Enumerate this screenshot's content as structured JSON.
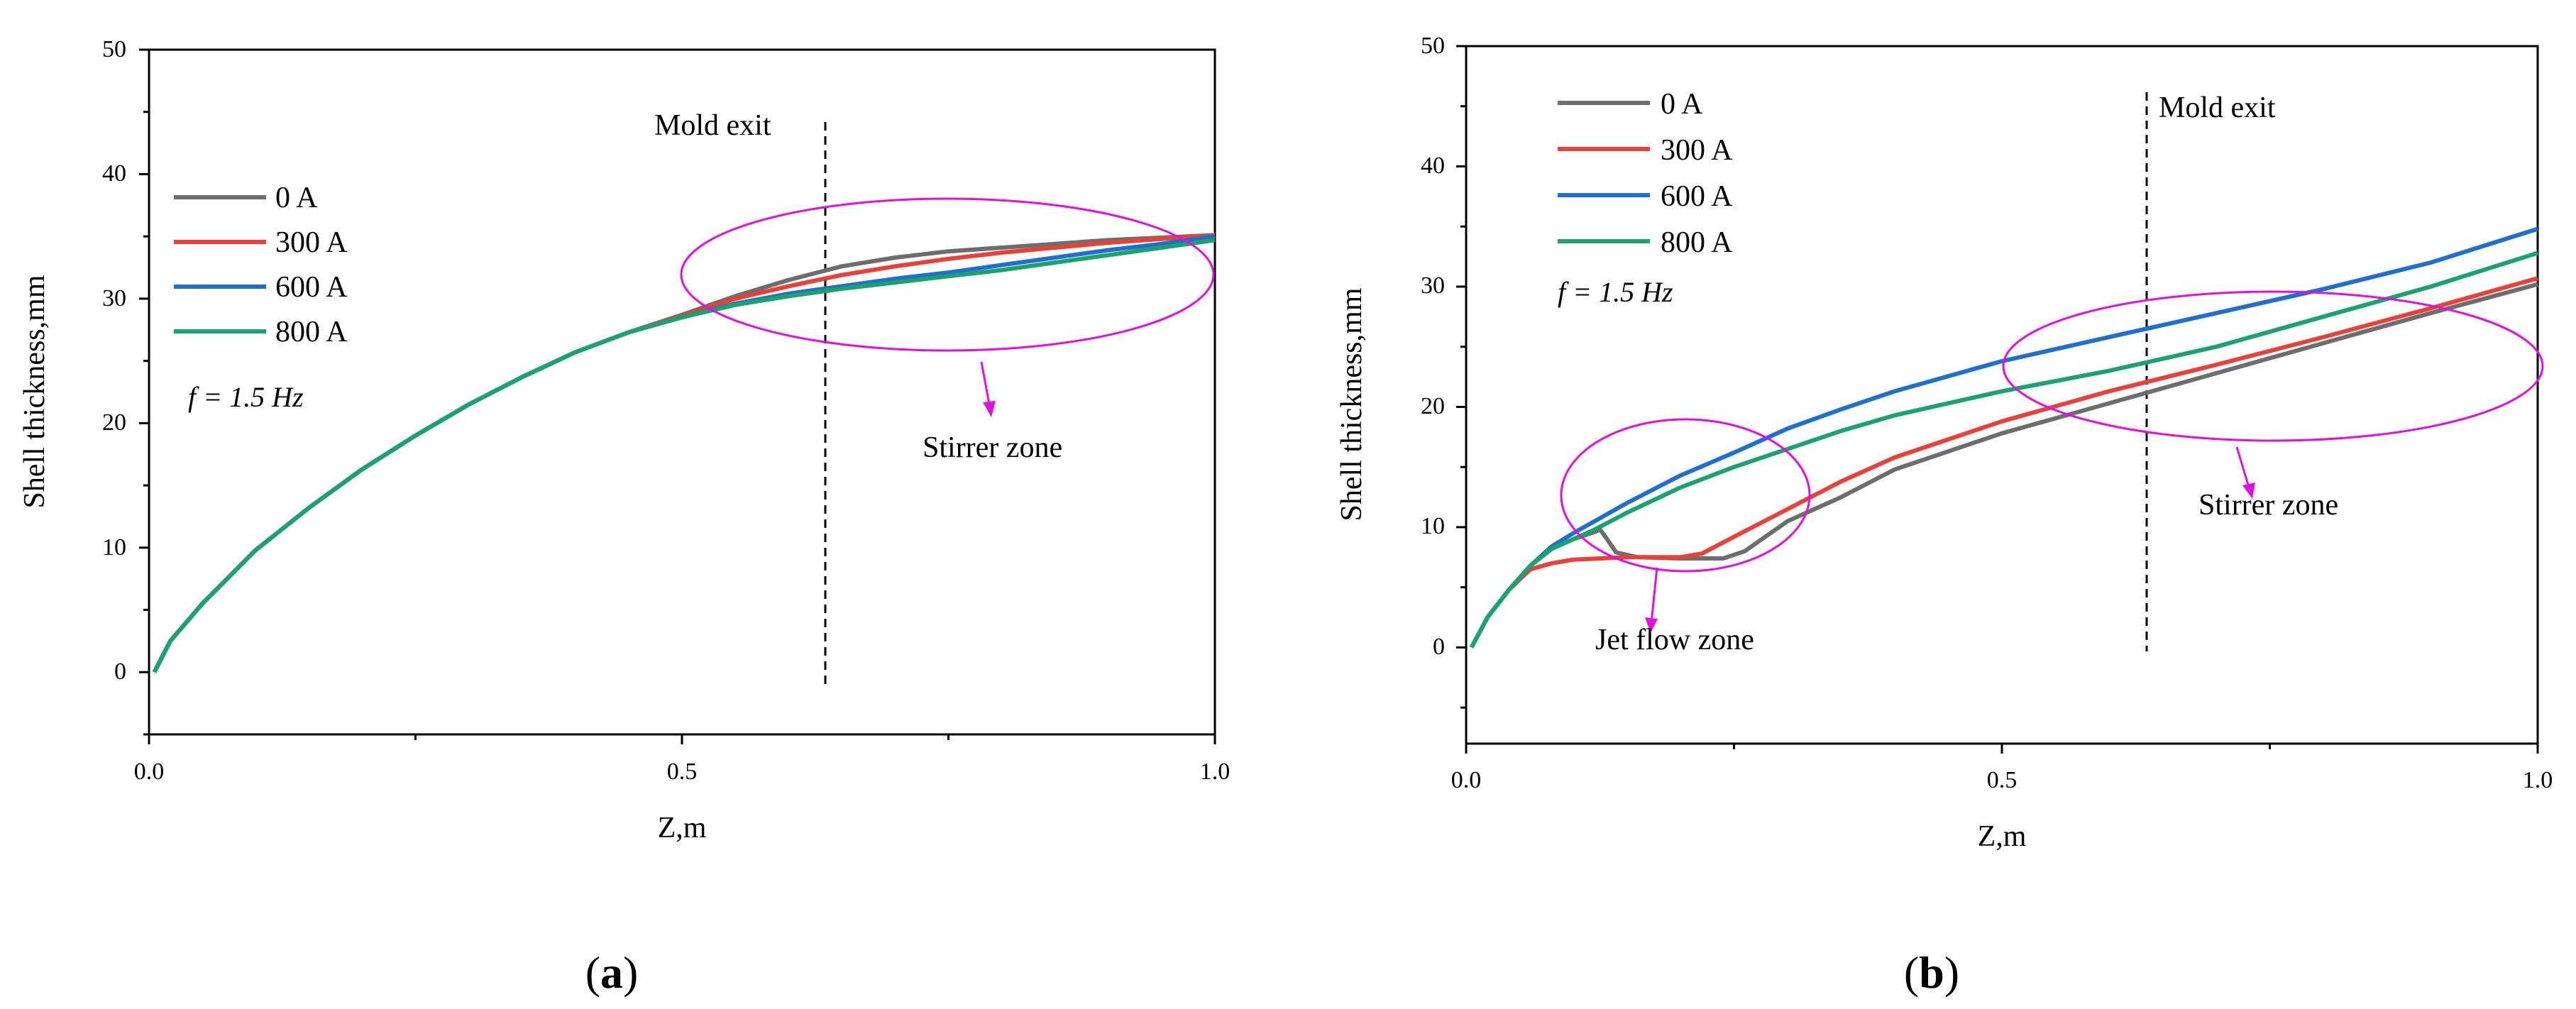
{
  "chart_data": [
    {
      "type": "line",
      "panel_label": "(a)",
      "xlabel": "Z,m",
      "ylabel": "Shell thickness,mm",
      "xlim": [
        0.0,
        1.0
      ],
      "ylim": [
        -5,
        50
      ],
      "xticks": [
        0.0,
        0.5,
        1.0
      ],
      "xtick_labels": [
        "0.0",
        "0.5",
        "1.0"
      ],
      "yticks": [
        0,
        10,
        20,
        30,
        40,
        50
      ],
      "ytick_labels": [
        "0",
        "10",
        "20",
        "30",
        "40",
        "50"
      ],
      "legend_location": "upper-left",
      "frequency_label": "f = 1.5 Hz",
      "series": [
        {
          "name": "0 A",
          "color": "#6d6d6d",
          "x": [
            0.005,
            0.02,
            0.05,
            0.1,
            0.15,
            0.2,
            0.25,
            0.3,
            0.35,
            0.4,
            0.45,
            0.5,
            0.55,
            0.6,
            0.65,
            0.7,
            0.75,
            0.8,
            0.85,
            0.9,
            0.95,
            1.0
          ],
          "y": [
            0.0,
            2.5,
            5.5,
            9.8,
            13.2,
            16.3,
            19.0,
            21.5,
            23.7,
            25.7,
            27.3,
            28.7,
            30.2,
            31.5,
            32.6,
            33.3,
            33.8,
            34.1,
            34.4,
            34.7,
            34.9,
            35.1
          ]
        },
        {
          "name": "300 A",
          "color": "#e8413a",
          "x": [
            0.005,
            0.02,
            0.05,
            0.1,
            0.15,
            0.2,
            0.25,
            0.3,
            0.35,
            0.4,
            0.45,
            0.5,
            0.55,
            0.6,
            0.65,
            0.7,
            0.75,
            0.8,
            0.85,
            0.9,
            0.95,
            1.0
          ],
          "y": [
            0.0,
            2.5,
            5.5,
            9.8,
            13.2,
            16.3,
            19.0,
            21.5,
            23.7,
            25.7,
            27.3,
            28.6,
            30.0,
            31.0,
            31.9,
            32.6,
            33.2,
            33.7,
            34.1,
            34.5,
            34.8,
            35.1
          ]
        },
        {
          "name": "600 A",
          "color": "#1f6fd0",
          "x": [
            0.005,
            0.02,
            0.05,
            0.1,
            0.15,
            0.2,
            0.25,
            0.3,
            0.35,
            0.4,
            0.45,
            0.5,
            0.55,
            0.6,
            0.65,
            0.7,
            0.75,
            0.8,
            0.85,
            0.9,
            0.95,
            1.0
          ],
          "y": [
            0.0,
            2.5,
            5.5,
            9.8,
            13.2,
            16.3,
            19.0,
            21.5,
            23.7,
            25.7,
            27.3,
            28.5,
            29.6,
            30.4,
            31.0,
            31.6,
            32.1,
            32.7,
            33.3,
            33.9,
            34.4,
            35.0
          ]
        },
        {
          "name": "800 A",
          "color": "#1aa36f",
          "x": [
            0.005,
            0.02,
            0.05,
            0.1,
            0.15,
            0.2,
            0.25,
            0.3,
            0.35,
            0.4,
            0.45,
            0.5,
            0.55,
            0.6,
            0.65,
            0.7,
            0.75,
            0.8,
            0.85,
            0.9,
            0.95,
            1.0
          ],
          "y": [
            0.0,
            2.5,
            5.5,
            9.8,
            13.2,
            16.3,
            19.0,
            21.5,
            23.7,
            25.7,
            27.3,
            28.5,
            29.5,
            30.2,
            30.8,
            31.3,
            31.8,
            32.3,
            32.9,
            33.5,
            34.1,
            34.7
          ]
        }
      ],
      "annotations": {
        "mold_exit_label": "Mold exit",
        "mold_exit_z": 0.635,
        "zones": [
          {
            "label": "Stirrer zone",
            "center_z": 0.75,
            "center_value": 32.0,
            "half_width_z": 0.25,
            "half_height_value": 6.0
          }
        ]
      }
    },
    {
      "type": "line",
      "panel_label": "(b)",
      "xlabel": "Z,m",
      "ylabel": "Shell thickness,mm",
      "xlim": [
        0.0,
        1.0
      ],
      "ylim": [
        -8,
        50
      ],
      "xticks": [
        0.0,
        0.5,
        1.0
      ],
      "xtick_labels": [
        "0.0",
        "0.5",
        "1.0"
      ],
      "yticks": [
        0,
        10,
        20,
        30,
        40,
        50
      ],
      "ytick_labels": [
        "0",
        "10",
        "20",
        "30",
        "40",
        "50"
      ],
      "legend_location": "upper-left",
      "frequency_label": "f = 1.5 Hz",
      "series": [
        {
          "name": "0 A",
          "color": "#6d6d6d",
          "x": [
            0.005,
            0.02,
            0.04,
            0.06,
            0.08,
            0.1,
            0.12,
            0.125,
            0.13,
            0.14,
            0.16,
            0.2,
            0.24,
            0.26,
            0.3,
            0.35,
            0.4,
            0.5,
            0.6,
            0.7,
            0.8,
            0.9,
            1.0
          ],
          "y": [
            0.0,
            2.5,
            4.8,
            6.8,
            8.2,
            9.0,
            9.6,
            9.8,
            9.2,
            7.9,
            7.5,
            7.4,
            7.4,
            8.0,
            10.5,
            12.5,
            14.8,
            17.8,
            20.3,
            22.8,
            25.3,
            27.8,
            30.2
          ]
        },
        {
          "name": "300 A",
          "color": "#e8413a",
          "x": [
            0.005,
            0.02,
            0.04,
            0.06,
            0.08,
            0.1,
            0.15,
            0.2,
            0.22,
            0.25,
            0.3,
            0.35,
            0.4,
            0.5,
            0.6,
            0.7,
            0.8,
            0.9,
            1.0
          ],
          "y": [
            0.0,
            2.5,
            4.8,
            6.5,
            7.0,
            7.3,
            7.5,
            7.5,
            7.8,
            9.2,
            11.5,
            13.8,
            15.8,
            18.8,
            21.3,
            23.5,
            25.8,
            28.2,
            30.7
          ]
        },
        {
          "name": "600 A",
          "color": "#1f6fd0",
          "x": [
            0.005,
            0.02,
            0.04,
            0.06,
            0.08,
            0.1,
            0.12,
            0.15,
            0.2,
            0.25,
            0.3,
            0.35,
            0.4,
            0.5,
            0.6,
            0.7,
            0.8,
            0.9,
            1.0
          ],
          "y": [
            0.0,
            2.5,
            4.8,
            6.8,
            8.4,
            9.5,
            10.5,
            12.0,
            14.3,
            16.2,
            18.2,
            19.8,
            21.3,
            23.8,
            25.8,
            27.8,
            29.8,
            32.0,
            34.8
          ]
        },
        {
          "name": "800 A",
          "color": "#1aa36f",
          "x": [
            0.005,
            0.02,
            0.04,
            0.06,
            0.08,
            0.1,
            0.12,
            0.15,
            0.2,
            0.25,
            0.3,
            0.35,
            0.4,
            0.5,
            0.6,
            0.7,
            0.8,
            0.9,
            1.0
          ],
          "y": [
            0.0,
            2.5,
            4.8,
            6.8,
            8.2,
            9.0,
            9.8,
            11.2,
            13.3,
            15.0,
            16.5,
            18.0,
            19.3,
            21.3,
            23.0,
            25.0,
            27.5,
            30.0,
            32.8
          ]
        }
      ],
      "annotations": {
        "mold_exit_label": "Mold exit",
        "mold_exit_z": 0.635,
        "zones": [
          {
            "label": "Jet flow zone",
            "center_z": 0.205,
            "center_value": 12.5,
            "half_width_z": 0.115,
            "half_height_value": 6.3
          },
          {
            "label": "Stirrer zone",
            "center_z": 0.755,
            "center_value": 23.0,
            "half_width_z": 0.255,
            "half_height_value": 6.3
          }
        ]
      }
    }
  ]
}
